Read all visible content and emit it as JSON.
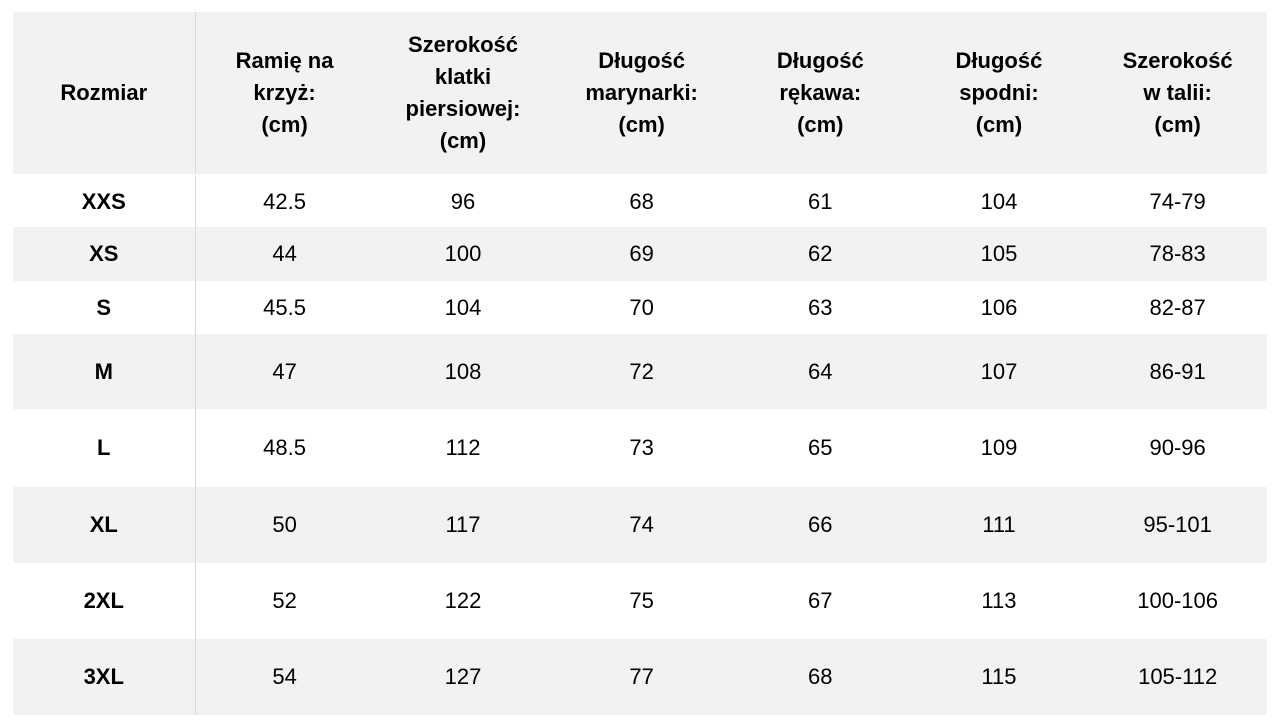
{
  "table": {
    "header": [
      "Rozmiar",
      "Ramię na\nkrzyż:\n(cm)",
      "Szerokość\nklatki\npiersiowej:\n(cm)",
      "Długość\nmarynarki:\n(cm)",
      "Długość\nrękawa:\n(cm)",
      "Długość\nspodni:\n(cm)",
      "Szerokość\nw talii:\n(cm)"
    ],
    "rows": [
      [
        "XXS",
        "42.5",
        "96",
        "68",
        "61",
        "104",
        "74-79"
      ],
      [
        "XS",
        "44",
        "100",
        "69",
        "62",
        "105",
        "78-83"
      ],
      [
        "S",
        "45.5",
        "104",
        "70",
        "63",
        "106",
        "82-87"
      ],
      [
        "M",
        "47",
        "108",
        "72",
        "64",
        "107",
        "86-91"
      ],
      [
        "L",
        "48.5",
        "112",
        "73",
        "65",
        "109",
        "90-96"
      ],
      [
        "XL",
        "50",
        "117",
        "74",
        "66",
        "111",
        "95-101"
      ],
      [
        "2XL",
        "52",
        "122",
        "75",
        "67",
        "113",
        "100-106"
      ],
      [
        "3XL",
        "54",
        "127",
        "77",
        "68",
        "115",
        "105-112"
      ]
    ]
  }
}
